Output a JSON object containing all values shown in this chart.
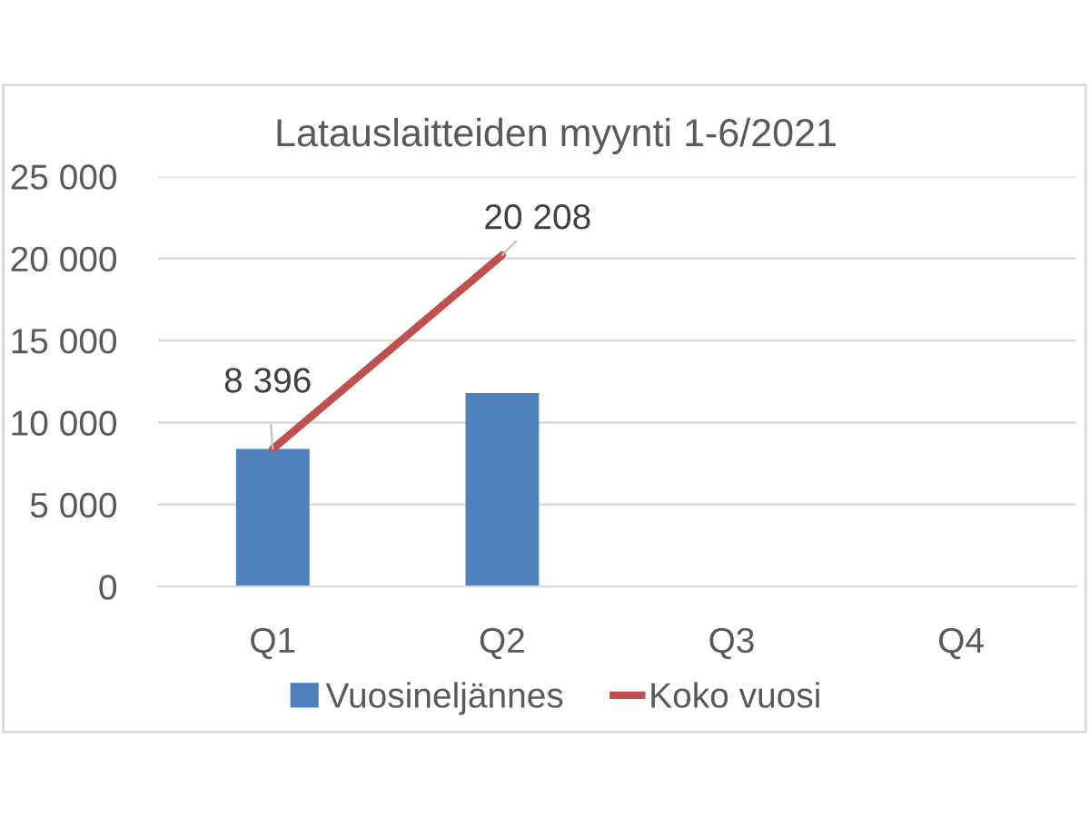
{
  "chart_data": {
    "type": "bar",
    "title": "Latauslaitteiden myynti 1-6/2021",
    "categories": [
      "Q1",
      "Q2",
      "Q3",
      "Q4"
    ],
    "series": [
      {
        "name": "Vuosineljännes",
        "color": "#4f81bd",
        "values": [
          8400,
          11800,
          null,
          null
        ]
      },
      {
        "name": "Koko vuosi",
        "type": "line",
        "color": "#c0504d",
        "values": [
          8396,
          20208,
          null,
          null
        ],
        "value_labels": [
          "8 396",
          "20 208",
          null,
          null
        ]
      }
    ],
    "ylim": [
      0,
      25000
    ],
    "yticks": [
      0,
      {
        "value": 5000,
        "label": "5 000"
      },
      {
        "value": 10000,
        "label": "10 000"
      },
      {
        "value": 15000,
        "label": "15 000"
      },
      {
        "value": 20000,
        "label": "20 000"
      },
      {
        "value": 25000,
        "label": "25 000"
      }
    ],
    "grid": "y",
    "legend": "bottom"
  }
}
